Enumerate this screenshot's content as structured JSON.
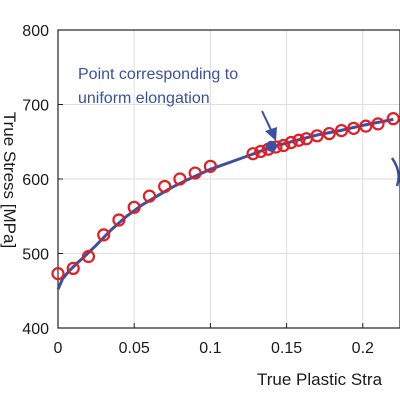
{
  "chart_data": {
    "type": "line",
    "title": "",
    "xlabel": "True Plastic Stra",
    "ylabel": "True Stress [MPa]",
    "xlim": [
      0,
      0.22
    ],
    "ylim": [
      400,
      800
    ],
    "grid": true,
    "x_ticks": [
      0,
      0.05,
      0.1,
      0.15,
      0.2
    ],
    "x_tick_labels": [
      "0",
      "0.05",
      "0.1",
      "0.15",
      "0.2"
    ],
    "y_ticks": [
      400,
      500,
      600,
      700,
      800
    ],
    "y_tick_labels": [
      "400",
      "500",
      "600",
      "700",
      "800"
    ],
    "series": [
      {
        "style": "markers",
        "color": "#e01e24",
        "x": [
          0,
          0.01,
          0.02,
          0.03,
          0.04,
          0.05,
          0.06,
          0.07,
          0.08,
          0.09,
          0.1,
          0.128,
          0.133,
          0.138,
          0.143,
          0.148,
          0.153,
          0.158,
          0.163,
          0.17,
          0.178,
          0.186,
          0.194,
          0.202,
          0.21,
          0.22
        ],
        "y": [
          473,
          480,
          496,
          525,
          545,
          562,
          577,
          590,
          600,
          608,
          617,
          634,
          637,
          640,
          643,
          645,
          649,
          652,
          654,
          658,
          661,
          665,
          668,
          671,
          674,
          681
        ]
      },
      {
        "style": "line",
        "color": "#3a50a0",
        "x": [
          0,
          0.003,
          0.007,
          0.012,
          0.018,
          0.025,
          0.035,
          0.045,
          0.055,
          0.065,
          0.075,
          0.085,
          0.1,
          0.115,
          0.13,
          0.14,
          0.155,
          0.17,
          0.185,
          0.2,
          0.21,
          0.22
        ],
        "y": [
          452,
          466,
          476,
          486,
          497,
          511,
          532,
          550,
          565,
          577,
          589,
          599,
          613,
          624,
          635,
          643,
          651,
          659,
          665,
          672,
          676,
          680
        ]
      }
    ],
    "marker_point": {
      "x": 0.14,
      "y": 644
    },
    "annotation": {
      "lines": [
        "Point corresponding to",
        "uniform elongation"
      ],
      "color": "#3a50a0"
    }
  }
}
